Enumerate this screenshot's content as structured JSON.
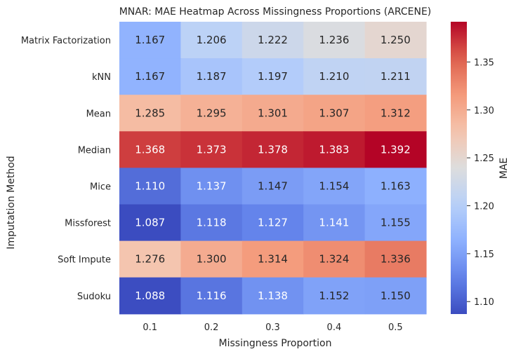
{
  "chart_data": {
    "type": "heatmap",
    "title": "MNAR: MAE Heatmap Across Missingness Proportions (ARCENE)",
    "xlabel": "Missingness Proportion",
    "ylabel": "Imputation Method",
    "x": [
      "0.1",
      "0.2",
      "0.3",
      "0.4",
      "0.5"
    ],
    "y": [
      "Matrix Factorization",
      "kNN",
      "Mean",
      "Median",
      "Mice",
      "Missforest",
      "Soft Impute",
      "Sudoku"
    ],
    "values": [
      [
        1.167,
        1.206,
        1.222,
        1.236,
        1.25
      ],
      [
        1.167,
        1.187,
        1.197,
        1.21,
        1.211
      ],
      [
        1.285,
        1.295,
        1.301,
        1.307,
        1.312
      ],
      [
        1.368,
        1.373,
        1.378,
        1.383,
        1.392
      ],
      [
        1.11,
        1.137,
        1.147,
        1.154,
        1.163
      ],
      [
        1.087,
        1.118,
        1.127,
        1.141,
        1.155
      ],
      [
        1.276,
        1.3,
        1.314,
        1.324,
        1.336
      ],
      [
        1.088,
        1.116,
        1.138,
        1.152,
        1.15
      ]
    ],
    "colormap": "coolwarm",
    "vmin": 1.087,
    "vmax": 1.392,
    "colorbar": {
      "label": "MAE",
      "ticks": [
        1.1,
        1.15,
        1.2,
        1.25,
        1.3,
        1.35
      ],
      "tick_labels": [
        "1.10",
        "1.15",
        "1.20",
        "1.25",
        "1.30",
        "1.35"
      ]
    },
    "grid": false
  }
}
